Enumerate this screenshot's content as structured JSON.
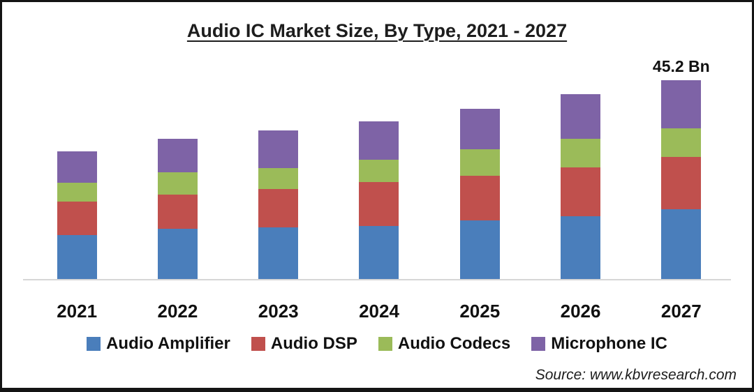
{
  "chart_data": {
    "type": "bar",
    "stacked": true,
    "title": "Audio IC Market Size, By Type, 2021 - 2027",
    "categories": [
      "2021",
      "2022",
      "2023",
      "2024",
      "2025",
      "2026",
      "2027"
    ],
    "series": [
      {
        "name": "Audio Amplifier",
        "color": "#4A7EBB",
        "values": [
          10.2,
          11.7,
          12.0,
          12.3,
          13.5,
          14.5,
          16.1
        ]
      },
      {
        "name": "Audio DSP",
        "color": "#C0504D",
        "values": [
          7.6,
          7.7,
          8.7,
          9.9,
          10.1,
          11.0,
          11.8
        ]
      },
      {
        "name": "Audio Codecs",
        "color": "#9BBB59",
        "values": [
          4.3,
          5.0,
          4.7,
          5.0,
          6.0,
          6.5,
          6.5
        ]
      },
      {
        "name": "Microphone IC",
        "color": "#7E63A6",
        "values": [
          7.1,
          7.6,
          8.5,
          8.7,
          9.1,
          10.0,
          10.8
        ]
      }
    ],
    "totals_estimated": [
      29.2,
      32.0,
      33.9,
      35.9,
      38.7,
      42.0,
      45.2
    ],
    "unit": "Bn",
    "annotation": {
      "text": "45.2 Bn",
      "category": "2027"
    },
    "legend_position": "bottom",
    "gridlines": false,
    "y_axis_visible": false,
    "ylim": [
      0,
      46
    ]
  },
  "source": {
    "label": "Source: www.kbvresearch.com"
  }
}
